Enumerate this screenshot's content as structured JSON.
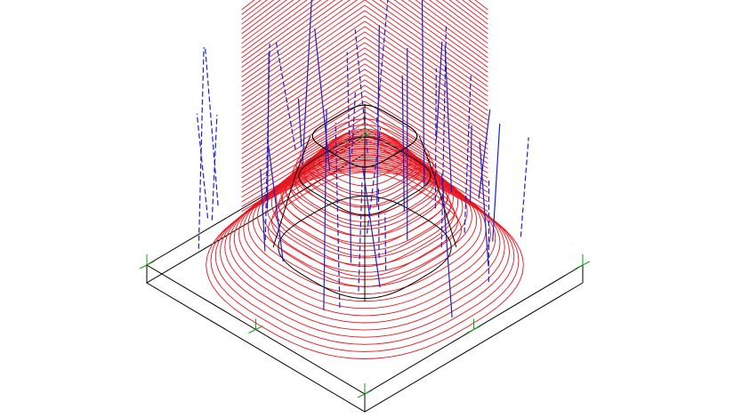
{
  "viewport": {
    "background": "#ffffff",
    "colors": {
      "toolpath": "#e8141e",
      "rapid_moves": "#1a22c8",
      "geometry": "#000000",
      "axis": "#1a9a1a"
    }
  }
}
